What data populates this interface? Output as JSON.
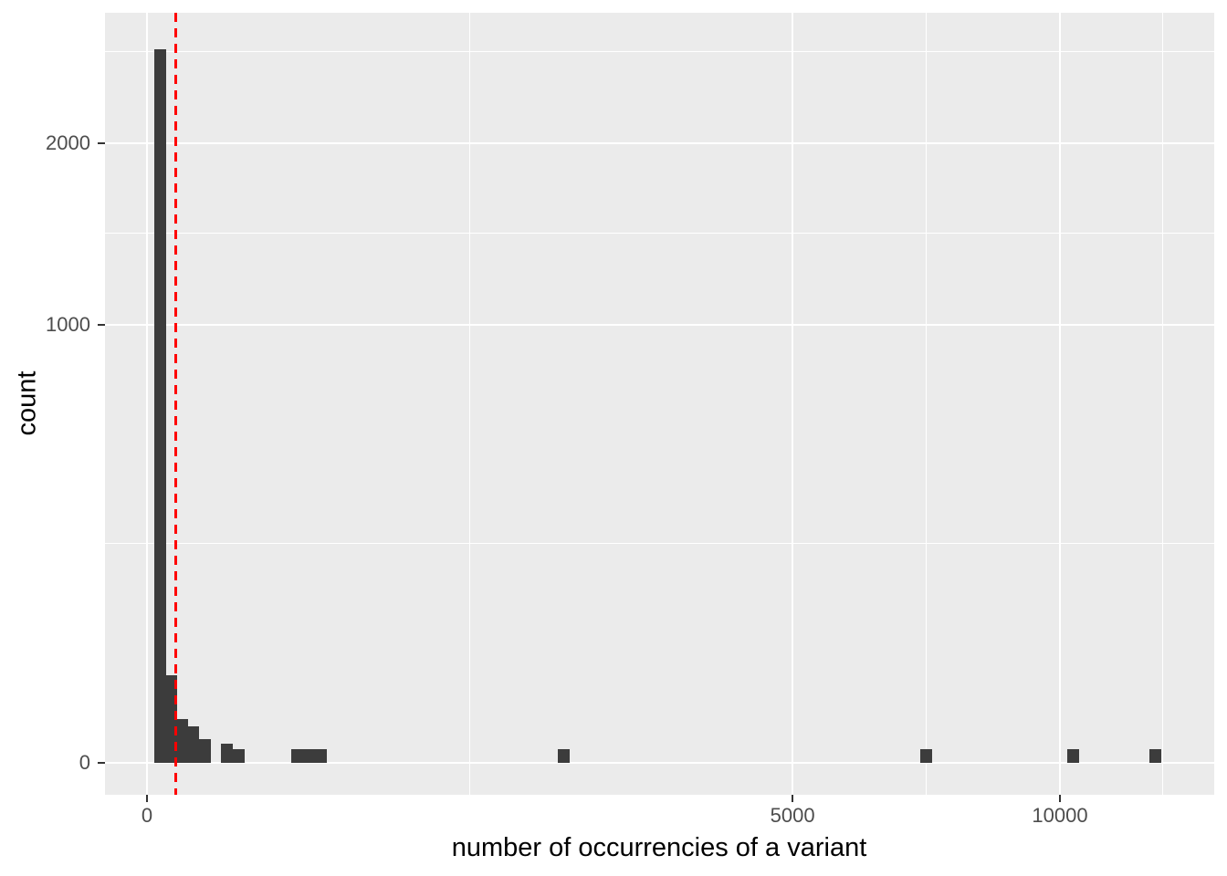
{
  "chart_data": {
    "type": "bar",
    "subtype": "histogram",
    "title": "",
    "xlabel": "number of occurrencies of a variant",
    "ylabel": "count",
    "x_scale": "sqrt",
    "y_scale": "sqrt",
    "legend": "none",
    "x_ticks": [
      {
        "value": 0,
        "label": "0"
      },
      {
        "value": 5000,
        "label": "5000"
      },
      {
        "value": 10000,
        "label": "10000"
      }
    ],
    "y_ticks": [
      {
        "value": 0,
        "label": "0"
      },
      {
        "value": 1000,
        "label": "1000"
      },
      {
        "value": 2000,
        "label": "2000"
      }
    ],
    "x_minor_breaks": [
      1250,
      7290,
      12375
    ],
    "y_minor_breaks": [
      250,
      1460,
      2630
    ],
    "x_range_sqrt": [
      -4.6,
      116.9
    ],
    "y_range_sqrt": [
      -2.3,
      54.1
    ],
    "binwidth_sqrt": 1.3,
    "bars": [
      {
        "x": 2,
        "count": 2650
      },
      {
        "x": 7,
        "count": 40
      },
      {
        "x": 15,
        "count": 10
      },
      {
        "x": 26,
        "count": 7
      },
      {
        "x": 40,
        "count": 3
      },
      {
        "x": 77,
        "count": 2
      },
      {
        "x": 102,
        "count": 1
      },
      {
        "x": 270,
        "count": 1
      },
      {
        "x": 314,
        "count": 1
      },
      {
        "x": 362,
        "count": 1
      },
      {
        "x": 2080,
        "count": 1
      },
      {
        "x": 7280,
        "count": 1
      },
      {
        "x": 10300,
        "count": 1
      },
      {
        "x": 12200,
        "count": 1
      }
    ],
    "vline": {
      "x": 10,
      "color": "#FF0000",
      "style": "dashed"
    },
    "colors": {
      "bar": "#3C3C3C",
      "panel_bg": "#EBEBEB",
      "grid": "#FFFFFF",
      "tick": "#333333",
      "axis_text": "#4D4D4D",
      "axis_title": "#000000",
      "background": "#FFFFFF"
    }
  }
}
